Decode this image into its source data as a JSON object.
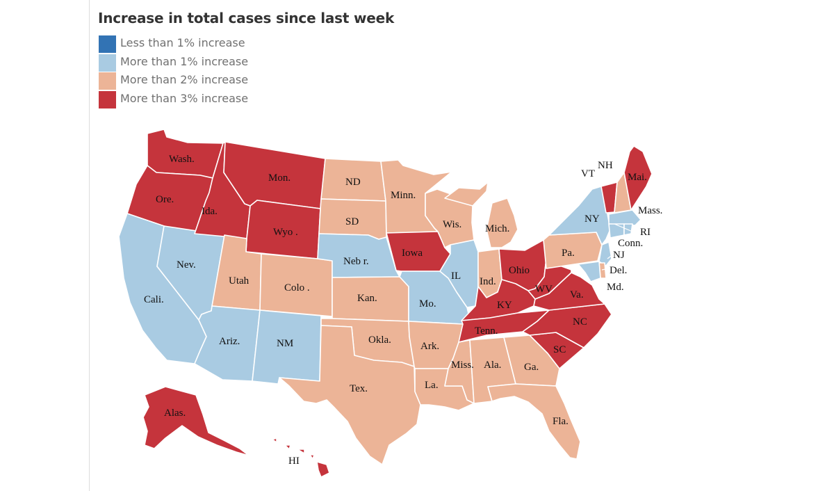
{
  "title": "Increase in total cases since last week",
  "legend": [
    {
      "key": "lt1",
      "label": "Less than 1% increase",
      "color": "#3273b4"
    },
    {
      "key": "gt1",
      "label": "More than 1% increase",
      "color": "#a9cbe2"
    },
    {
      "key": "gt2",
      "label": "More than 2% increase",
      "color": "#ecb497"
    },
    {
      "key": "gt3",
      "label": "More than 3% increase",
      "color": "#c5343c"
    }
  ],
  "states": [
    {
      "id": "wa",
      "label": "Wash.",
      "category": "gt3"
    },
    {
      "id": "or",
      "label": "Ore.",
      "category": "gt3"
    },
    {
      "id": "ca",
      "label": "Cali.",
      "category": "gt1"
    },
    {
      "id": "nv",
      "label": "Nev.",
      "category": "gt1"
    },
    {
      "id": "id",
      "label": "Ida.",
      "category": "gt3"
    },
    {
      "id": "mt",
      "label": "Mon.",
      "category": "gt3"
    },
    {
      "id": "wy",
      "label": "Wyo .",
      "category": "gt3"
    },
    {
      "id": "ut",
      "label": "Utah",
      "category": "gt2"
    },
    {
      "id": "az",
      "label": "Ariz.",
      "category": "gt1"
    },
    {
      "id": "co",
      "label": "Colo .",
      "category": "gt2"
    },
    {
      "id": "nm",
      "label": "NM",
      "category": "gt1"
    },
    {
      "id": "nd",
      "label": "ND",
      "category": "gt2"
    },
    {
      "id": "sd",
      "label": "SD",
      "category": "gt2"
    },
    {
      "id": "ne",
      "label": "Neb r.",
      "category": "gt1"
    },
    {
      "id": "ks",
      "label": "Kan.",
      "category": "gt2"
    },
    {
      "id": "ok",
      "label": "Okla.",
      "category": "gt2"
    },
    {
      "id": "tx",
      "label": "Tex.",
      "category": "gt2"
    },
    {
      "id": "mn",
      "label": "Minn.",
      "category": "gt2"
    },
    {
      "id": "ia",
      "label": "Iowa",
      "category": "gt3"
    },
    {
      "id": "mo",
      "label": "Mo.",
      "category": "gt1"
    },
    {
      "id": "ar",
      "label": "Ark.",
      "category": "gt2"
    },
    {
      "id": "la",
      "label": "La.",
      "category": "gt2"
    },
    {
      "id": "wi",
      "label": "Wis.",
      "category": "gt2"
    },
    {
      "id": "il",
      "label": "IL",
      "category": "gt1"
    },
    {
      "id": "mi",
      "label": "Mich.",
      "category": "gt2"
    },
    {
      "id": "in",
      "label": "Ind.",
      "category": "gt2"
    },
    {
      "id": "oh",
      "label": "Ohio",
      "category": "gt3"
    },
    {
      "id": "ky",
      "label": "KY",
      "category": "gt3"
    },
    {
      "id": "tn",
      "label": "Tenn.",
      "category": "gt3"
    },
    {
      "id": "ms",
      "label": "Miss.",
      "category": "gt2"
    },
    {
      "id": "al",
      "label": "Ala.",
      "category": "gt2"
    },
    {
      "id": "ga",
      "label": "Ga.",
      "category": "gt2"
    },
    {
      "id": "fl",
      "label": "Fla.",
      "category": "gt2"
    },
    {
      "id": "sc",
      "label": "SC",
      "category": "gt3"
    },
    {
      "id": "nc",
      "label": "NC",
      "category": "gt3"
    },
    {
      "id": "va",
      "label": "Va.",
      "category": "gt3"
    },
    {
      "id": "wv",
      "label": "WV",
      "category": "gt3"
    },
    {
      "id": "pa",
      "label": "Pa.",
      "category": "gt2"
    },
    {
      "id": "ny",
      "label": "NY",
      "category": "gt1"
    },
    {
      "id": "vt",
      "label": "VT",
      "category": "gt3"
    },
    {
      "id": "nh",
      "label": "NH",
      "category": "gt2"
    },
    {
      "id": "me",
      "label": "Mai.",
      "category": "gt3"
    },
    {
      "id": "ma",
      "label": "Mass.",
      "category": "gt1"
    },
    {
      "id": "ri",
      "label": "RI",
      "category": "gt1"
    },
    {
      "id": "ct",
      "label": "Conn.",
      "category": "gt1"
    },
    {
      "id": "nj",
      "label": "NJ",
      "category": "gt1"
    },
    {
      "id": "de",
      "label": "Del.",
      "category": "gt2"
    },
    {
      "id": "md",
      "label": "Md.",
      "category": "gt1"
    },
    {
      "id": "ak",
      "label": "Alas.",
      "category": "gt3"
    },
    {
      "id": "hi",
      "label": "HI",
      "category": "gt3"
    }
  ]
}
